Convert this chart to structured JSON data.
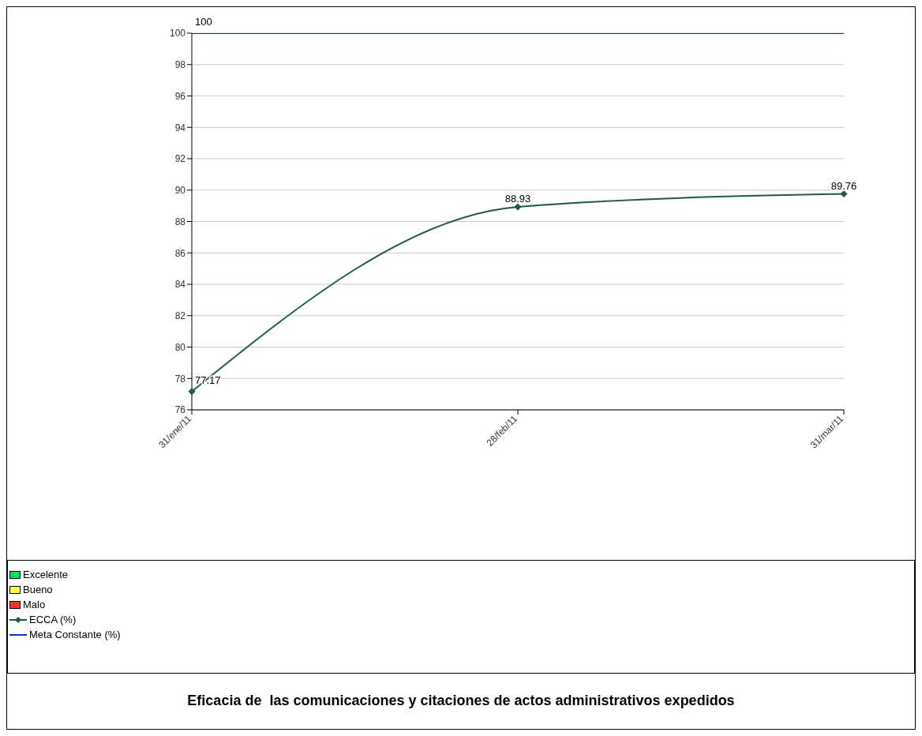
{
  "chart_data": {
    "type": "line",
    "title": "Eficacia de  las comunicaciones y citaciones de actos administrativos expedidos",
    "categories": [
      "31/ene/11",
      "28/feb/11",
      "31/mar/11"
    ],
    "series": [
      {
        "name": "Excelente",
        "type": "area",
        "color": "#00e060",
        "values": [
          null,
          null,
          null
        ]
      },
      {
        "name": "Bueno",
        "type": "area",
        "color": "#ffff40",
        "values": [
          null,
          null,
          null
        ]
      },
      {
        "name": "Malo",
        "type": "area",
        "color": "#ff3030",
        "values": [
          null,
          null,
          null
        ]
      },
      {
        "name": "ECCA (%)",
        "color": "#1e5a46",
        "marker": "diamond",
        "values": [
          77.17,
          88.93,
          89.76
        ],
        "value_labels": [
          "77.17",
          "88.93",
          "89.76"
        ]
      },
      {
        "name": "Meta Constante (%)",
        "color": "#1030c8",
        "marker": "none",
        "values": [
          100,
          100,
          100
        ],
        "value_labels": [
          "100",
          null,
          null
        ]
      }
    ],
    "ylim": [
      76,
      100
    ],
    "yticks": [
      76,
      78,
      80,
      82,
      84,
      86,
      88,
      90,
      92,
      94,
      96,
      98,
      100
    ],
    "grid": "y",
    "legend": "bottom",
    "line_style": "solid"
  }
}
